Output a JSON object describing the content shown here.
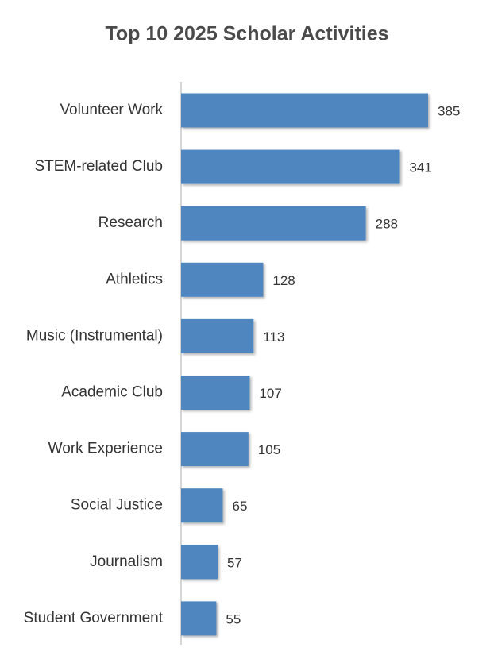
{
  "chart_data": {
    "type": "bar",
    "orientation": "horizontal",
    "title": "Top 10 2025 Scholar Activities",
    "categories": [
      "Volunteer Work",
      "STEM-related Club",
      "Research",
      "Athletics",
      "Music (Instrumental)",
      "Academic Club",
      "Work Experience",
      "Social Justice",
      "Journalism",
      "Student Government"
    ],
    "values": [
      385,
      341,
      288,
      128,
      113,
      107,
      105,
      65,
      57,
      55
    ],
    "color": "#4f86bf"
  }
}
